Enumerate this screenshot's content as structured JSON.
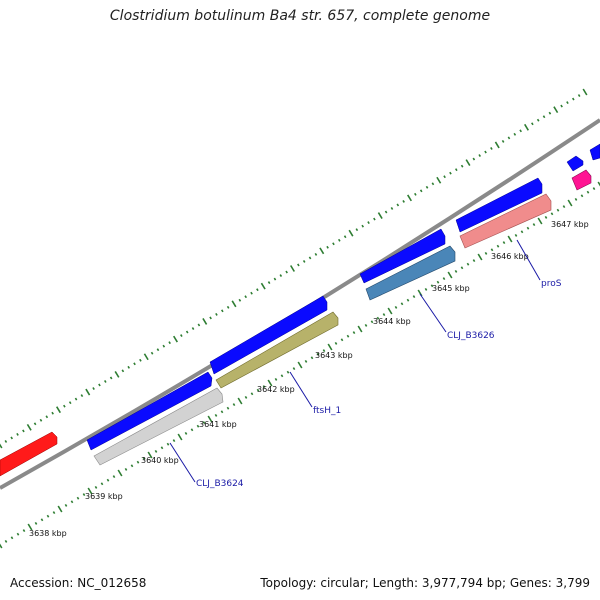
{
  "title": "Clostridium botulinum Ba4 str. 657, complete genome",
  "footer": {
    "accession": "Accession: NC_012658",
    "summary": "Topology: circular; Length: 3,977,794 bp; Genes: 3,799"
  },
  "scale_labels": [
    "3638 kbp",
    "3639 kbp",
    "3640 kbp",
    "3641 kbp",
    "3642 kbp",
    "3643 kbp",
    "3644 kbp",
    "3645 kbp",
    "3646 kbp",
    "3647 kbp"
  ],
  "gene_labels": [
    "CLJ_B3624",
    "ftsH_1",
    "CLJ_B3626",
    "proS"
  ],
  "colors": {
    "cds_forward": "#0a0aff",
    "cds_red": "#ff1a1a",
    "gene_grey": "#cfcfcf",
    "gene_olive": "#b7b26a",
    "gene_steelblue": "#4a86b8",
    "gene_salmon": "#f08c8c",
    "gene_magenta": "#ff1493",
    "backbone": "#8a8a8a",
    "ticks": "#2e7d32",
    "label_blue": "#1a1aa6"
  }
}
